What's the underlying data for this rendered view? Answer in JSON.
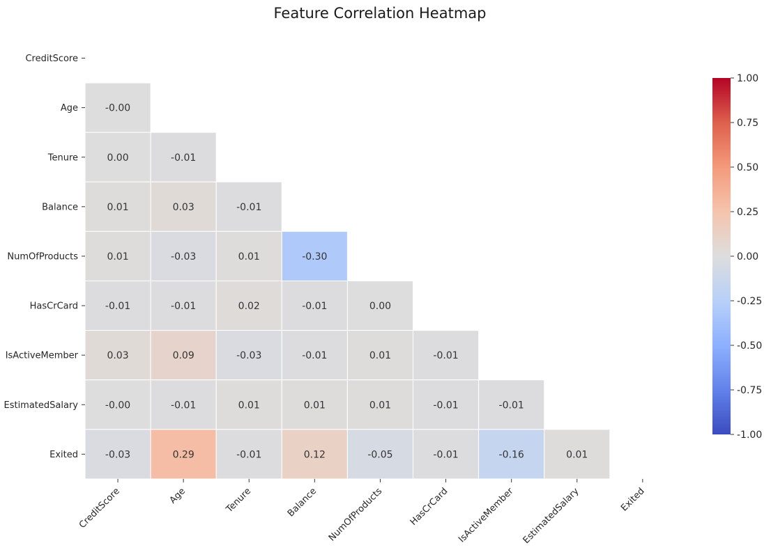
{
  "chart_data": {
    "type": "heatmap",
    "title": "Feature Correlation Heatmap",
    "variables": [
      "CreditScore",
      "Age",
      "Tenure",
      "Balance",
      "NumOfProducts",
      "HasCrCard",
      "IsActiveMember",
      "EstimatedSalary",
      "Exited"
    ],
    "mask": "upper-triangle-including-diagonal",
    "matrix": [
      [
        null,
        null,
        null,
        null,
        null,
        null,
        null,
        null,
        null
      ],
      [
        -0.0,
        null,
        null,
        null,
        null,
        null,
        null,
        null,
        null
      ],
      [
        0.0,
        -0.01,
        null,
        null,
        null,
        null,
        null,
        null,
        null
      ],
      [
        0.01,
        0.03,
        -0.01,
        null,
        null,
        null,
        null,
        null,
        null
      ],
      [
        0.01,
        -0.03,
        0.01,
        -0.3,
        null,
        null,
        null,
        null,
        null
      ],
      [
        -0.01,
        -0.01,
        0.02,
        -0.01,
        0.0,
        null,
        null,
        null,
        null
      ],
      [
        0.03,
        0.09,
        -0.03,
        -0.01,
        0.01,
        -0.01,
        null,
        null,
        null
      ],
      [
        -0.0,
        -0.01,
        0.01,
        0.01,
        0.01,
        -0.01,
        -0.01,
        null,
        null
      ],
      [
        -0.03,
        0.29,
        -0.01,
        0.12,
        -0.05,
        -0.01,
        -0.16,
        0.01,
        null
      ]
    ],
    "annotations": [
      [
        null,
        null,
        null,
        null,
        null,
        null,
        null,
        null,
        null
      ],
      [
        "-0.00",
        null,
        null,
        null,
        null,
        null,
        null,
        null,
        null
      ],
      [
        "0.00",
        "-0.01",
        null,
        null,
        null,
        null,
        null,
        null,
        null
      ],
      [
        "0.01",
        "0.03",
        "-0.01",
        null,
        null,
        null,
        null,
        null,
        null
      ],
      [
        "0.01",
        "-0.03",
        "0.01",
        "-0.30",
        null,
        null,
        null,
        null,
        null
      ],
      [
        "-0.01",
        "-0.01",
        "0.02",
        "-0.01",
        "0.00",
        null,
        null,
        null,
        null
      ],
      [
        "0.03",
        "0.09",
        "-0.03",
        "-0.01",
        "0.01",
        "-0.01",
        null,
        null,
        null
      ],
      [
        "-0.00",
        "-0.01",
        "0.01",
        "0.01",
        "0.01",
        "-0.01",
        "-0.01",
        null,
        null
      ],
      [
        "-0.03",
        "0.29",
        "-0.01",
        "0.12",
        "-0.05",
        "-0.01",
        "-0.16",
        "0.01",
        null
      ]
    ],
    "colormap": "coolwarm",
    "vmin": -1.0,
    "vmax": 1.0,
    "colorbar": {
      "ticks": [
        1.0,
        0.75,
        0.5,
        0.25,
        0.0,
        -0.25,
        -0.5,
        -0.75,
        -1.0
      ],
      "tick_labels": [
        "1.00",
        "0.75",
        "0.50",
        "0.25",
        "0.00",
        "-0.25",
        "-0.50",
        "-0.75",
        "-1.00"
      ],
      "placement": "right"
    },
    "grid_lines": true,
    "xlabel": "",
    "ylabel": ""
  }
}
